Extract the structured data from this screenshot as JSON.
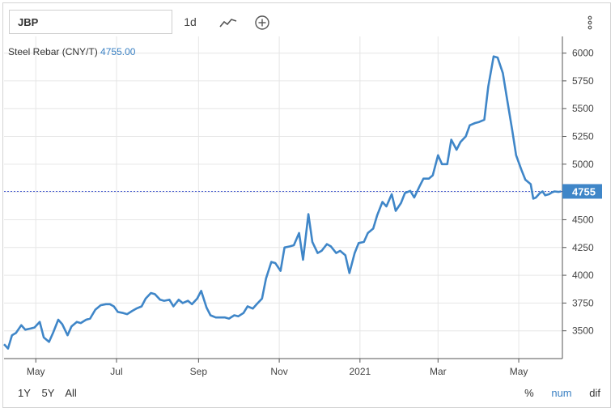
{
  "toolbar": {
    "symbol": "JBP",
    "interval": "1d",
    "chart_type_icon": "line-chart-icon",
    "add_icon": "plus-circle-icon",
    "menu_icon": "vertical-dots-icon"
  },
  "header": {
    "series_name": "Steel Rebar (CNY/T)",
    "last_price": "4755.00"
  },
  "ranges": [
    "1Y",
    "5Y",
    "All"
  ],
  "modes": [
    "%",
    "num",
    "dif"
  ],
  "active_mode": "num",
  "colors": {
    "line": "#3f86c8",
    "badge": "#3f86c8",
    "grid": "#e6e6e6",
    "axis": "#555555"
  },
  "chart_data": {
    "type": "line",
    "title": "Steel Rebar (CNY/T)",
    "xlabel": "",
    "ylabel": "",
    "ylim": [
      3250,
      6150
    ],
    "xlim": [
      "2020-04-07",
      "2021-06-03"
    ],
    "yticks": [
      3500,
      3750,
      4000,
      4250,
      4500,
      4750,
      5000,
      5250,
      5500,
      5750,
      6000
    ],
    "xticks": [
      {
        "date": "2020-05-01",
        "label": "May"
      },
      {
        "date": "2020-07-01",
        "label": "Jul"
      },
      {
        "date": "2020-09-01",
        "label": "Sep"
      },
      {
        "date": "2020-11-01",
        "label": "Nov"
      },
      {
        "date": "2021-01-01",
        "label": "2021"
      },
      {
        "date": "2021-03-01",
        "label": "Mar"
      },
      {
        "date": "2021-05-01",
        "label": "May"
      }
    ],
    "last_value_label": "4755",
    "last_value": 4755,
    "series": [
      {
        "x": [
          "2020-04-07",
          "2020-04-10",
          "2020-04-13",
          "2020-04-16",
          "2020-04-20",
          "2020-04-23",
          "2020-04-27",
          "2020-04-30",
          "2020-05-04",
          "2020-05-07",
          "2020-05-11",
          "2020-05-14",
          "2020-05-18",
          "2020-05-21",
          "2020-05-25",
          "2020-05-28",
          "2020-06-01",
          "2020-06-04",
          "2020-06-08",
          "2020-06-11",
          "2020-06-15",
          "2020-06-19",
          "2020-06-23",
          "2020-06-26",
          "2020-06-29",
          "2020-07-02",
          "2020-07-06",
          "2020-07-09",
          "2020-07-13",
          "2020-07-16",
          "2020-07-20",
          "2020-07-23",
          "2020-07-27",
          "2020-07-30",
          "2020-08-03",
          "2020-08-06",
          "2020-08-10",
          "2020-08-13",
          "2020-08-17",
          "2020-08-20",
          "2020-08-24",
          "2020-08-27",
          "2020-08-31",
          "2020-09-03",
          "2020-09-07",
          "2020-09-10",
          "2020-09-14",
          "2020-09-17",
          "2020-09-21",
          "2020-09-24",
          "2020-09-28",
          "2020-10-01",
          "2020-10-05",
          "2020-10-08",
          "2020-10-12",
          "2020-10-15",
          "2020-10-19",
          "2020-10-22",
          "2020-10-26",
          "2020-10-29",
          "2020-11-02",
          "2020-11-05",
          "2020-11-09",
          "2020-11-12",
          "2020-11-16",
          "2020-11-19",
          "2020-11-23",
          "2020-11-26",
          "2020-11-30",
          "2020-12-03",
          "2020-12-07",
          "2020-12-10",
          "2020-12-14",
          "2020-12-17",
          "2020-12-21",
          "2020-12-24",
          "2020-12-28",
          "2020-12-31",
          "2021-01-04",
          "2021-01-07",
          "2021-01-11",
          "2021-01-14",
          "2021-01-18",
          "2021-01-21",
          "2021-01-25",
          "2021-01-28",
          "2021-02-01",
          "2021-02-04",
          "2021-02-08",
          "2021-02-11",
          "2021-02-15",
          "2021-02-18",
          "2021-02-22",
          "2021-02-25",
          "2021-03-01",
          "2021-03-04",
          "2021-03-08",
          "2021-03-11",
          "2021-03-15",
          "2021-03-18",
          "2021-03-22",
          "2021-03-25",
          "2021-03-29",
          "2021-04-01",
          "2021-04-05",
          "2021-04-08",
          "2021-04-12",
          "2021-04-15",
          "2021-04-19",
          "2021-04-22",
          "2021-04-26",
          "2021-04-29",
          "2021-05-03",
          "2021-05-06",
          "2021-05-10",
          "2021-05-12",
          "2021-05-14",
          "2021-05-17",
          "2021-05-19",
          "2021-05-21",
          "2021-05-24",
          "2021-05-26",
          "2021-05-28",
          "2021-05-31",
          "2021-06-02"
        ],
        "values": [
          3380,
          3340,
          3460,
          3480,
          3550,
          3510,
          3520,
          3530,
          3580,
          3440,
          3400,
          3480,
          3600,
          3560,
          3460,
          3540,
          3580,
          3570,
          3600,
          3610,
          3690,
          3730,
          3740,
          3740,
          3720,
          3670,
          3660,
          3650,
          3680,
          3700,
          3720,
          3790,
          3840,
          3830,
          3780,
          3770,
          3780,
          3720,
          3780,
          3750,
          3770,
          3740,
          3790,
          3860,
          3710,
          3640,
          3620,
          3620,
          3620,
          3610,
          3640,
          3630,
          3660,
          3720,
          3700,
          3740,
          3790,
          3970,
          4120,
          4110,
          4040,
          4250,
          4260,
          4270,
          4380,
          4140,
          4550,
          4300,
          4200,
          4220,
          4280,
          4260,
          4200,
          4220,
          4180,
          4020,
          4200,
          4290,
          4300,
          4380,
          4420,
          4540,
          4660,
          4620,
          4730,
          4580,
          4650,
          4740,
          4760,
          4700,
          4800,
          4870,
          4870,
          4900,
          5080,
          5000,
          5000,
          5220,
          5130,
          5200,
          5250,
          5350,
          5370,
          5380,
          5400,
          5700,
          5970,
          5960,
          5820,
          5600,
          5310,
          5080,
          4950,
          4860,
          4820,
          4690,
          4700,
          4740,
          4755,
          4720,
          4730,
          4745,
          4755,
          4750,
          4755
        ]
      }
    ]
  }
}
